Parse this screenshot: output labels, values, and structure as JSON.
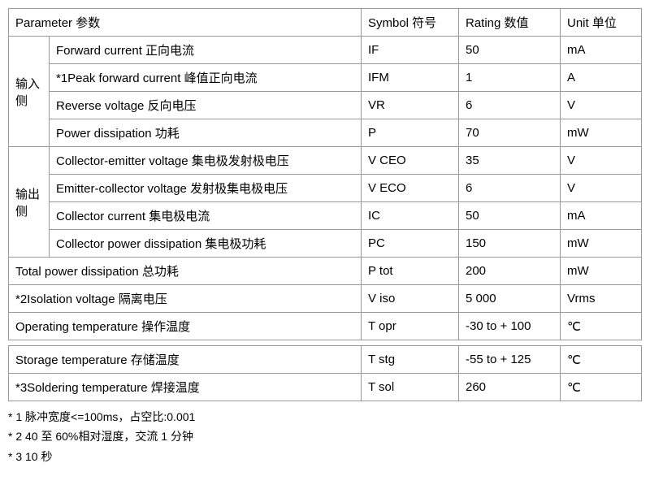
{
  "headers": {
    "parameter": "Parameter 参数",
    "symbol": "Symbol 符号",
    "rating": "Rating 数值",
    "unit": "Unit 单位"
  },
  "groups": {
    "input": "输入侧",
    "output": "输出侧"
  },
  "rows": {
    "r1": {
      "param": "Forward current 正向电流",
      "symbol": "IF",
      "rating": "50",
      "unit": "mA"
    },
    "r2": {
      "param": "*1Peak forward current 峰值正向电流",
      "symbol": "IFM",
      "rating": "1",
      "unit": "A"
    },
    "r3": {
      "param": "Reverse voltage 反向电压",
      "symbol": "VR",
      "rating": "6",
      "unit": "V"
    },
    "r4": {
      "param": "Power dissipation 功耗",
      "symbol": "P",
      "rating": "70",
      "unit": "mW"
    },
    "r5": {
      "param": "Collector-emitter voltage 集电极发射极电压",
      "symbol": "V CEO",
      "rating": "35",
      "unit": "V"
    },
    "r6": {
      "param": "Emitter-collector voltage 发射极集电极电压",
      "symbol": "V ECO",
      "rating": "6",
      "unit": "V"
    },
    "r7": {
      "param": "Collector current 集电极电流",
      "symbol": "IC",
      "rating": "50",
      "unit": "mA"
    },
    "r8": {
      "param": "Collector power dissipation 集电极功耗",
      "symbol": "PC",
      "rating": "150",
      "unit": "mW"
    },
    "r9": {
      "param": "Total power dissipation 总功耗",
      "symbol": "P tot",
      "rating": "200",
      "unit": "mW"
    },
    "r10": {
      "param": "*2Isolation voltage 隔离电压",
      "symbol": "V iso",
      "rating": "5 000",
      "unit": "Vrms"
    },
    "r11": {
      "param": "Operating temperature 操作温度",
      "symbol": "T opr",
      "rating": "-30 to + 100",
      "unit": "℃"
    },
    "r12": {
      "param": "Storage temperature 存储温度",
      "symbol": "T stg",
      "rating": "-55 to + 125",
      "unit": "℃"
    },
    "r13": {
      "param": "*3Soldering temperature 焊接温度",
      "symbol": "T sol",
      "rating": "260",
      "unit": "℃"
    }
  },
  "footnotes": {
    "n1": "* 1 脉冲宽度<=100ms，占空比:0.001",
    "n2": "* 2 40 至 60%相对湿度，交流 1 分钟",
    "n3": "* 3 10 秒"
  }
}
